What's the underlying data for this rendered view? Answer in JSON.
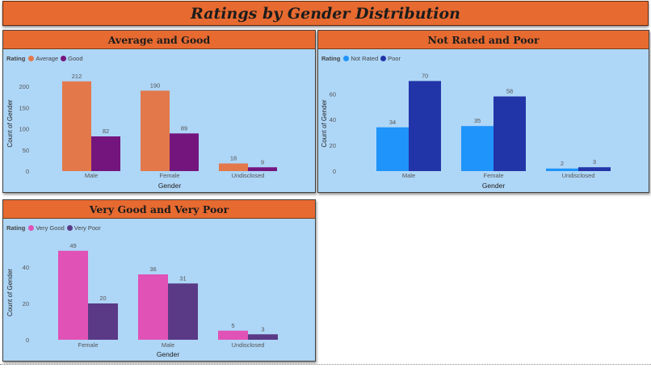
{
  "dashboard": {
    "title": "Ratings by Gender Distribution"
  },
  "chart_data": [
    {
      "type": "bar",
      "title": "Average and Good",
      "legend_title": "Rating",
      "xlabel": "Gender",
      "ylabel": "Count of Gender",
      "categories": [
        "Male",
        "Female",
        "Undisclosed"
      ],
      "series": [
        {
          "name": "Average",
          "values": [
            212,
            190,
            18
          ],
          "color": "#e3784a"
        },
        {
          "name": "Good",
          "values": [
            82,
            89,
            9
          ],
          "color": "#74157e"
        }
      ],
      "yticks": [
        0,
        50,
        100,
        150,
        200
      ],
      "ylim": [
        0,
        225
      ],
      "legend_position": "top-left",
      "grid": false
    },
    {
      "type": "bar",
      "title": "Not Rated and Poor",
      "legend_title": "Rating",
      "xlabel": "Gender",
      "ylabel": "Count of Gender",
      "categories": [
        "Male",
        "Female",
        "Undisclosed"
      ],
      "series": [
        {
          "name": "Not Rated",
          "values": [
            34,
            35,
            2
          ],
          "color": "#1f94fb"
        },
        {
          "name": "Poor",
          "values": [
            70,
            58,
            3
          ],
          "color": "#2235a8"
        }
      ],
      "yticks": [
        0,
        20,
        40,
        60
      ],
      "ylim": [
        0,
        74
      ],
      "legend_position": "top-left",
      "grid": false
    },
    {
      "type": "bar",
      "title": "Very Good and Very Poor",
      "legend_title": "Rating",
      "xlabel": "Gender",
      "ylabel": "Count of Gender",
      "categories": [
        "Female",
        "Male",
        "Undisclosed"
      ],
      "series": [
        {
          "name": "Very Good",
          "values": [
            49,
            36,
            5
          ],
          "color": "#e052b5"
        },
        {
          "name": "Very Poor",
          "values": [
            20,
            31,
            3
          ],
          "color": "#5a3a86"
        }
      ],
      "yticks": [
        0,
        20,
        40
      ],
      "ylim": [
        0,
        52
      ],
      "legend_position": "top-left",
      "grid": false
    }
  ]
}
